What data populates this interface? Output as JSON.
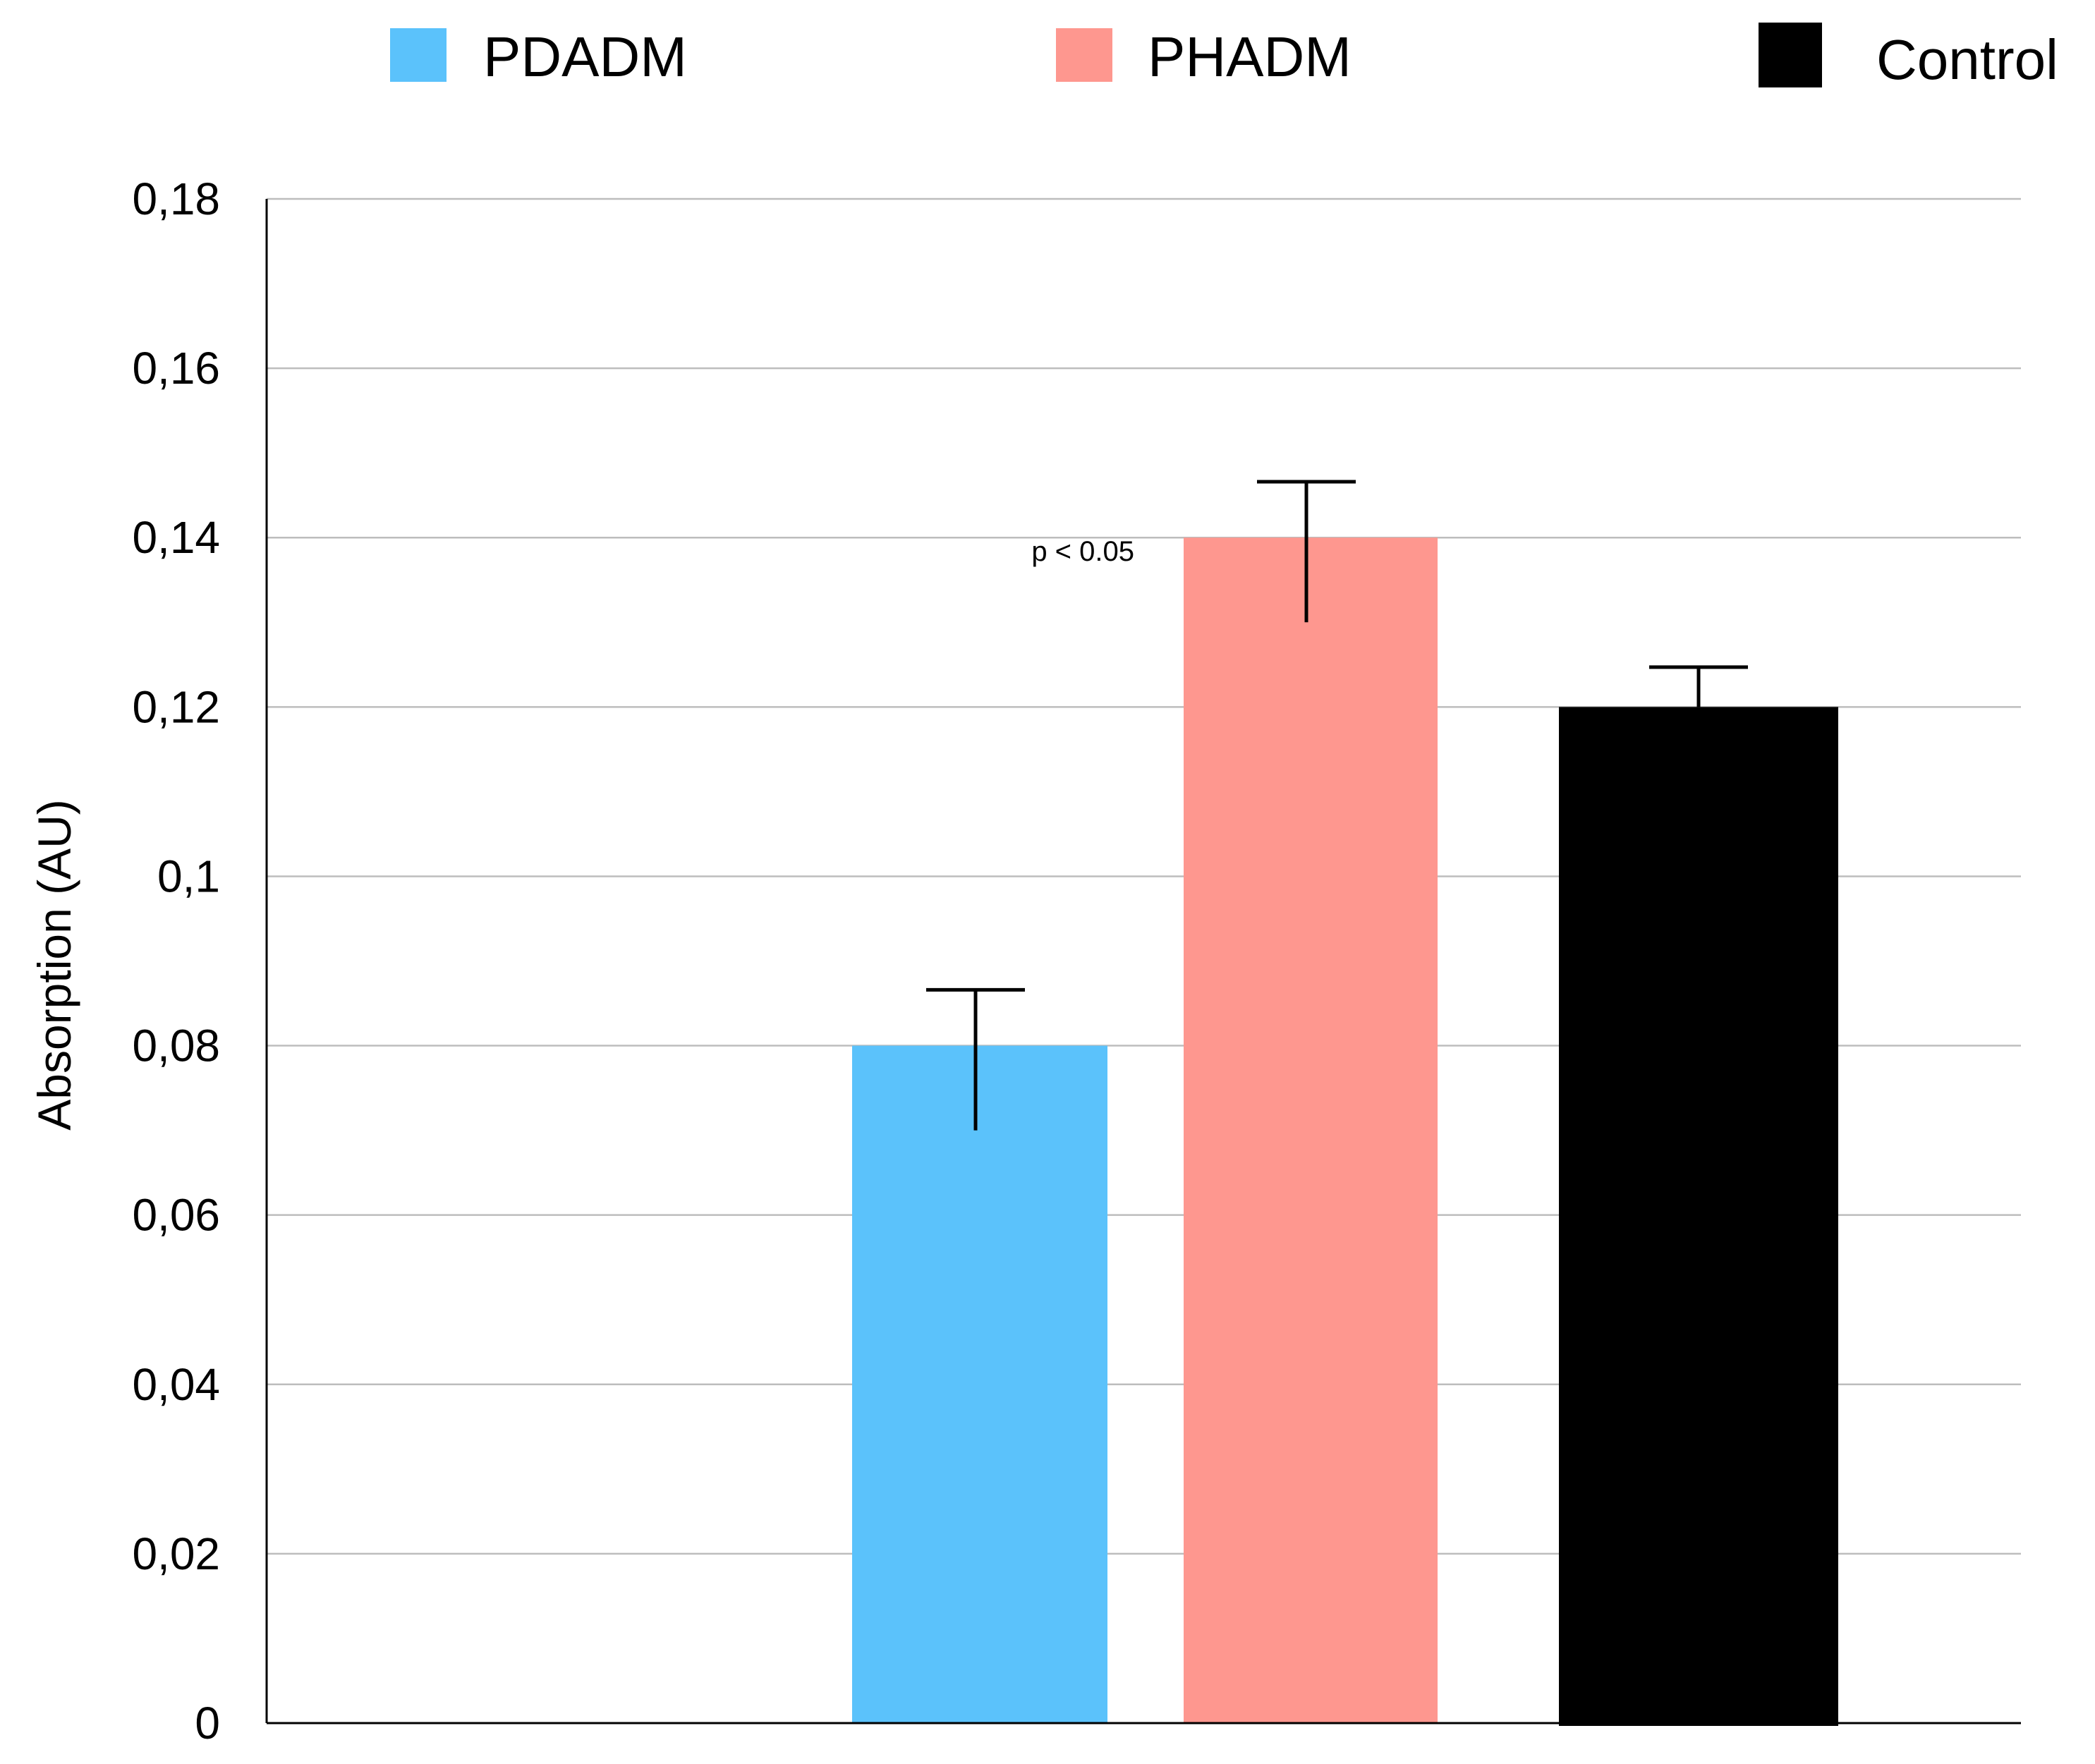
{
  "chart_data": {
    "type": "bar",
    "title": "",
    "xlabel": "",
    "ylabel": "Absorption (AU)",
    "ylim": [
      0,
      0.18
    ],
    "yticks": [
      0,
      0.02,
      0.04,
      0.06,
      0.08,
      0.1,
      0.12,
      0.14,
      0.16,
      0.18
    ],
    "ytick_labels": [
      "0",
      "0,02",
      "0,04",
      "0,06",
      "0,08",
      "0,1",
      "0,12",
      "0,14",
      "0,16",
      "0,18"
    ],
    "grid": true,
    "legend": "top",
    "categories": [
      "PDADM",
      "PHADM",
      "Control"
    ],
    "series": [
      {
        "name": "PDADM",
        "color": "#5bc2fb",
        "value": 0.08,
        "error_upper": 0.0866,
        "error_lower": 0.07
      },
      {
        "name": "PHADM",
        "color": "#fe978f",
        "value": 0.14,
        "error_upper": 0.1466,
        "error_lower": 0.13
      },
      {
        "name": "Control",
        "color": "#000000",
        "value": 0.12,
        "error_upper": 0.1247,
        "error_lower": 0.12
      }
    ],
    "annotations": [
      {
        "text": "p < 0.05",
        "target": "PHADM"
      }
    ]
  }
}
